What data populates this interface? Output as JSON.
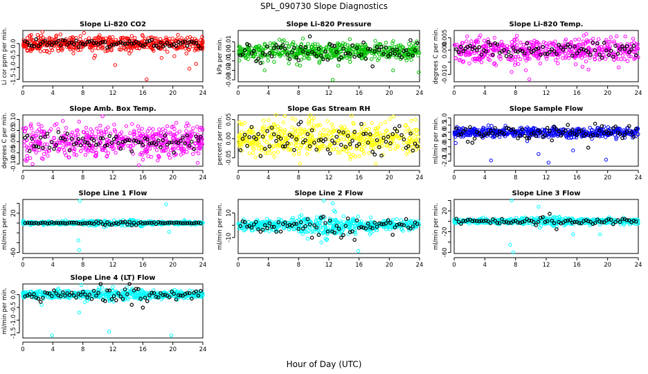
{
  "figure": {
    "title": "SPL_090730  Slope Diagnostics",
    "xlabel": "Hour of Day (UTC)"
  },
  "chart_data": [
    {
      "type": "scatter",
      "title": "Slope Li-820 CO2",
      "ylabel": "Li cor ppm per min.",
      "xlim": [
        0,
        24
      ],
      "ylim": [
        -1.6,
        0.55
      ],
      "xticks": [
        0,
        4,
        8,
        12,
        16,
        20,
        24
      ],
      "yticks": [
        -1.5,
        -1.0,
        -0.5,
        0.0
      ],
      "ytick_labels": [
        "-1.5",
        "-1.0",
        "-0.5",
        "0.0"
      ],
      "color": "#ff0000",
      "dense_spread": 0.15,
      "black_spread": 0.09,
      "outliers": [
        [
          16.5,
          -1.5
        ],
        [
          22.2,
          -1.05
        ],
        [
          12.3,
          -0.9
        ],
        [
          23.1,
          -0.85
        ],
        [
          18.5,
          -0.6
        ],
        [
          9.5,
          -0.6
        ]
      ]
    },
    {
      "type": "scatter",
      "title": "Slope Li-820 Pressure",
      "ylabel": "kPa per min.",
      "xlim": [
        0,
        24
      ],
      "ylim": [
        -0.032,
        0.022
      ],
      "xticks": [
        0,
        4,
        8,
        12,
        16,
        20,
        24
      ],
      "yticks": [
        -0.03,
        -0.02,
        -0.01,
        0.0,
        0.01
      ],
      "ytick_labels": [
        "-0.03",
        "-0.02",
        "-0.01",
        "0.00",
        "0.01"
      ],
      "color": "#00c000",
      "dense_spread": 0.005,
      "black_spread": 0.005,
      "outliers": [
        [
          12.5,
          -0.03
        ],
        [
          23.9,
          -0.022
        ],
        [
          8.2,
          -0.015
        ],
        [
          3.5,
          -0.02
        ],
        [
          20.5,
          -0.02
        ]
      ]
    },
    {
      "type": "scatter",
      "title": "Slope Li-820 Temp.",
      "ylabel": "degrees C per min.",
      "xlim": [
        0,
        24
      ],
      "ylim": [
        -0.013,
        0.008
      ],
      "xticks": [
        0,
        4,
        8,
        12,
        16,
        20,
        24
      ],
      "yticks": [
        -0.01,
        -0.005,
        0.0,
        0.005
      ],
      "ytick_labels": [
        "-0.010",
        "",
        "0.000",
        "0.005"
      ],
      "color": "#ff00ff",
      "dense_spread": 0.0025,
      "black_spread": 0.0015,
      "outliers": [
        [
          9.8,
          -0.012
        ],
        [
          7.5,
          -0.009
        ],
        [
          17.5,
          -0.008
        ]
      ]
    },
    {
      "type": "scatter",
      "title": "Slope Amb. Box Temp.",
      "ylabel": "degrees C per min.",
      "xlim": [
        0,
        24
      ],
      "ylim": [
        -0.11,
        0.12
      ],
      "xticks": [
        0,
        4,
        8,
        12,
        16,
        20,
        24
      ],
      "yticks": [
        -0.1,
        -0.05,
        0.0,
        0.05,
        0.1
      ],
      "ytick_labels": [
        "-0.10",
        "-0.05",
        "0.00",
        "0.05",
        "0.10"
      ],
      "color": "#ff00ff",
      "dense_spread": 0.035,
      "black_spread": 0.018,
      "outliers": [
        [
          4.5,
          0.08
        ],
        [
          7.5,
          0.09
        ],
        [
          1.3,
          -0.1
        ],
        [
          16.0,
          -0.08
        ]
      ]
    },
    {
      "type": "scatter",
      "title": "Slope Gas Stream RH",
      "ylabel": "percent per min.",
      "xlim": [
        0,
        24
      ],
      "ylim": [
        -0.072,
        0.062
      ],
      "xticks": [
        0,
        4,
        8,
        12,
        16,
        20,
        24
      ],
      "yticks": [
        -0.05,
        0.0,
        0.05
      ],
      "ytick_labels": [
        "-0.05",
        "0.00",
        "0.05"
      ],
      "color": "#ffff00",
      "dense_spread": 0.022,
      "black_spread": 0.02,
      "outliers": [
        [
          8.2,
          -0.065
        ],
        [
          18.2,
          -0.065
        ],
        [
          15.0,
          0.06
        ]
      ]
    },
    {
      "type": "scatter",
      "title": "Slope Sample Flow",
      "ylabel": "ml/min per min.",
      "xlim": [
        0,
        24
      ],
      "ylim": [
        -2.35,
        1.2
      ],
      "xticks": [
        0,
        4,
        8,
        12,
        16,
        20,
        24
      ],
      "yticks": [
        -2.0,
        -1.5,
        -1.0,
        -0.5,
        0.0,
        0.5,
        1.0
      ],
      "ytick_labels": [
        "-2.0",
        "-1.5",
        "-1.0",
        "-0.5",
        "0.0",
        "0.5",
        "1.0"
      ],
      "color": "#0000ff",
      "dense_spread": 0.17,
      "black_spread": 0.3,
      "outliers": [
        [
          4.8,
          -1.95
        ],
        [
          12.3,
          -2.1
        ],
        [
          19.8,
          -1.9
        ],
        [
          0.2,
          -0.75
        ],
        [
          11.0,
          -1.5
        ],
        [
          15.5,
          -1.25
        ]
      ]
    },
    {
      "type": "scatter",
      "title": "Slope Line 1 Flow",
      "ylabel": "ml/min per min.",
      "xlim": [
        0,
        24
      ],
      "ylim": [
        -62,
        48
      ],
      "xticks": [
        0,
        4,
        8,
        12,
        16,
        20,
        24
      ],
      "yticks": [
        -60,
        -40,
        -20,
        0,
        20,
        40
      ],
      "ytick_labels": [
        "-60",
        "",
        "",
        "",
        "20",
        ""
      ],
      "color": "#00ffff",
      "dense_spread": 1.5,
      "black_spread": 0.8,
      "outliers": [
        [
          7.6,
          45
        ],
        [
          19.1,
          38
        ],
        [
          7.5,
          -55
        ],
        [
          7.4,
          -35
        ],
        [
          19.5,
          -18
        ]
      ]
    },
    {
      "type": "scatter",
      "title": "Slope Line 2 Flow",
      "ylabel": "ml/min per min.",
      "xlim": [
        0,
        24
      ],
      "ylim": [
        -23,
        21
      ],
      "xticks": [
        0,
        4,
        8,
        12,
        16,
        20,
        24
      ],
      "yticks": [
        -10,
        0,
        10
      ],
      "ytick_labels": [
        "-10",
        "",
        "10"
      ],
      "color": "#00ffff",
      "dense_spread": 2.2,
      "black_spread": 2.4,
      "outliers": [
        [
          11.3,
          20
        ],
        [
          12.5,
          18
        ],
        [
          11.0,
          -14
        ],
        [
          9.2,
          -11
        ],
        [
          15.9,
          -21
        ]
      ]
    },
    {
      "type": "scatter",
      "title": "Slope Line 3 Flow",
      "ylabel": "ml/min per min.",
      "xlim": [
        0,
        24
      ],
      "ylim": [
        -62,
        42
      ],
      "xticks": [
        0,
        4,
        8,
        12,
        16,
        20,
        24
      ],
      "yticks": [
        -60,
        -40,
        -20,
        0,
        20,
        40
      ],
      "ytick_labels": [
        "-60",
        "",
        "-20",
        "",
        "20",
        ""
      ],
      "color": "#00ffff",
      "dense_spread": 2.5,
      "black_spread": 2.5,
      "outliers": [
        [
          7.7,
          -60
        ],
        [
          7.3,
          -45
        ],
        [
          7.5,
          40
        ],
        [
          11.0,
          28
        ],
        [
          15.5,
          -25
        ],
        [
          19.0,
          -25
        ]
      ]
    },
    {
      "type": "scatter",
      "title": "Slope Line 4 (LT) Flow",
      "ylabel": "ml/min per min.",
      "xlim": [
        0,
        24
      ],
      "ylim": [
        -1.7,
        0.42
      ],
      "xticks": [
        0,
        4,
        8,
        12,
        16,
        20,
        24
      ],
      "yticks": [
        -1.5,
        -1.0,
        -0.5,
        0.0
      ],
      "ytick_labels": [
        "-1.5",
        "-1.0",
        "-0.5",
        "0.0"
      ],
      "color": "#00ffff",
      "dense_spread": 0.07,
      "black_spread": 0.09,
      "outliers": [
        [
          3.9,
          -1.6
        ],
        [
          11.5,
          -1.45
        ],
        [
          19.8,
          -1.6
        ],
        [
          7.5,
          -0.7
        ],
        [
          2.5,
          -0.4
        ],
        [
          12.0,
          0.3
        ],
        [
          7.8,
          0.38
        ]
      ]
    }
  ]
}
